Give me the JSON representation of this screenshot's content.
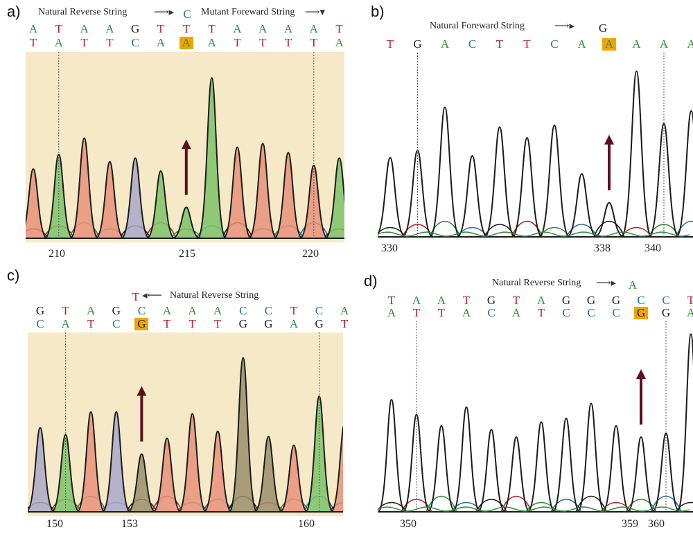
{
  "panels": [
    {
      "id": "a",
      "label": "a)",
      "notes": [
        "Natural Reverse String",
        "Mutant Foreward String"
      ],
      "top_base": "C",
      "seq_top": [
        "A",
        "T",
        "A",
        "A",
        "G",
        "T",
        "T",
        "T",
        "A",
        "A",
        "A",
        "A",
        "T"
      ],
      "seq_bottom": [
        "T",
        "A",
        "T",
        "T",
        "C",
        "A",
        "A",
        "A",
        "T",
        "T",
        "T",
        "T",
        "A"
      ],
      "highlight_index": 6,
      "axis_labels": [
        "210",
        "215",
        "220"
      ],
      "peak_colors": [
        "#e8927a",
        "#7cc36a",
        "#e8927a",
        "#e8927a",
        "#a9a8c9",
        "#7cc36a",
        "#7cc36a",
        "#7cc36a",
        "#e8927a",
        "#e8927a",
        "#e8927a",
        "#e8927a",
        "#7cc36a"
      ],
      "peak_levels": [
        0.38,
        0.46,
        0.55,
        0.42,
        0.44,
        0.37,
        0.17,
        0.88,
        0.5,
        0.52,
        0.47,
        0.4,
        0.44
      ]
    },
    {
      "id": "b",
      "label": "b)",
      "notes": [
        "Natural Foreward String"
      ],
      "top_base": "G",
      "seq_top": [
        "T",
        "G",
        "A",
        "C",
        "T",
        "T",
        "C",
        "A",
        "A",
        "A",
        "A",
        "A"
      ],
      "highlight_index": 8,
      "axis_labels": [
        "330",
        "338",
        "340"
      ],
      "peak_colors": [
        "#e8927a",
        "#9a8f6a",
        "#7cc36a",
        "#a9a8c9",
        "#e8927a",
        "#e8927a",
        "#a9a8c9",
        "#7cc36a",
        "#5c8a4c",
        "#7cc36a",
        "#7cc36a",
        "#7cc36a"
      ],
      "peak_levels": [
        0.44,
        0.48,
        0.72,
        0.45,
        0.61,
        0.55,
        0.62,
        0.35,
        0.19,
        0.92,
        0.63,
        0.7
      ]
    },
    {
      "id": "c",
      "label": "c)",
      "notes": [
        "Natural Reverse String"
      ],
      "top_base": "T",
      "seq_top": [
        "G",
        "T",
        "A",
        "G",
        "C",
        "A",
        "A",
        "A",
        "C",
        "C",
        "T",
        "C",
        "A"
      ],
      "seq_bottom": [
        "C",
        "A",
        "T",
        "C",
        "G",
        "T",
        "T",
        "T",
        "G",
        "G",
        "A",
        "G",
        "T"
      ],
      "highlight_index": 4,
      "axis_labels": [
        "150",
        "153",
        "160"
      ],
      "peak_colors": [
        "#a9a8c9",
        "#7cc36a",
        "#e8927a",
        "#a9a8c9",
        "#9a8f6a",
        "#e8927a",
        "#e8927a",
        "#e8927a",
        "#9a8f6a",
        "#9a8f6a",
        "#e8927a",
        "#7cc36a",
        "#e8927a"
      ],
      "peak_levels": [
        0.48,
        0.44,
        0.57,
        0.57,
        0.33,
        0.42,
        0.56,
        0.46,
        0.88,
        0.43,
        0.38,
        0.66,
        0.5
      ]
    },
    {
      "id": "d",
      "label": "d)",
      "notes": [
        "Natural Reverse String"
      ],
      "top_base": "A",
      "seq_top": [
        "T",
        "A",
        "A",
        "T",
        "G",
        "T",
        "A",
        "G",
        "G",
        "G",
        "C",
        "C",
        "T"
      ],
      "seq_bottom": [
        "A",
        "T",
        "T",
        "A",
        "C",
        "A",
        "T",
        "C",
        "C",
        "C",
        "G",
        "G",
        "A"
      ],
      "highlight_index": 10,
      "axis_labels": [
        "350",
        "359",
        "360"
      ],
      "peak_colors": [
        "#ffffff",
        "#ffffff",
        "#ffffff",
        "#ffffff",
        "#ffffff",
        "#ffffff",
        "#ffffff",
        "#ffffff",
        "#ffffff",
        "#ffffff",
        "#ffffff",
        "#ffffff",
        "#ffffff"
      ],
      "peak_levels": [
        0.6,
        0.52,
        0.46,
        0.56,
        0.44,
        0.4,
        0.48,
        0.5,
        0.58,
        0.46,
        0.4,
        0.42,
        0.95
      ]
    }
  ]
}
